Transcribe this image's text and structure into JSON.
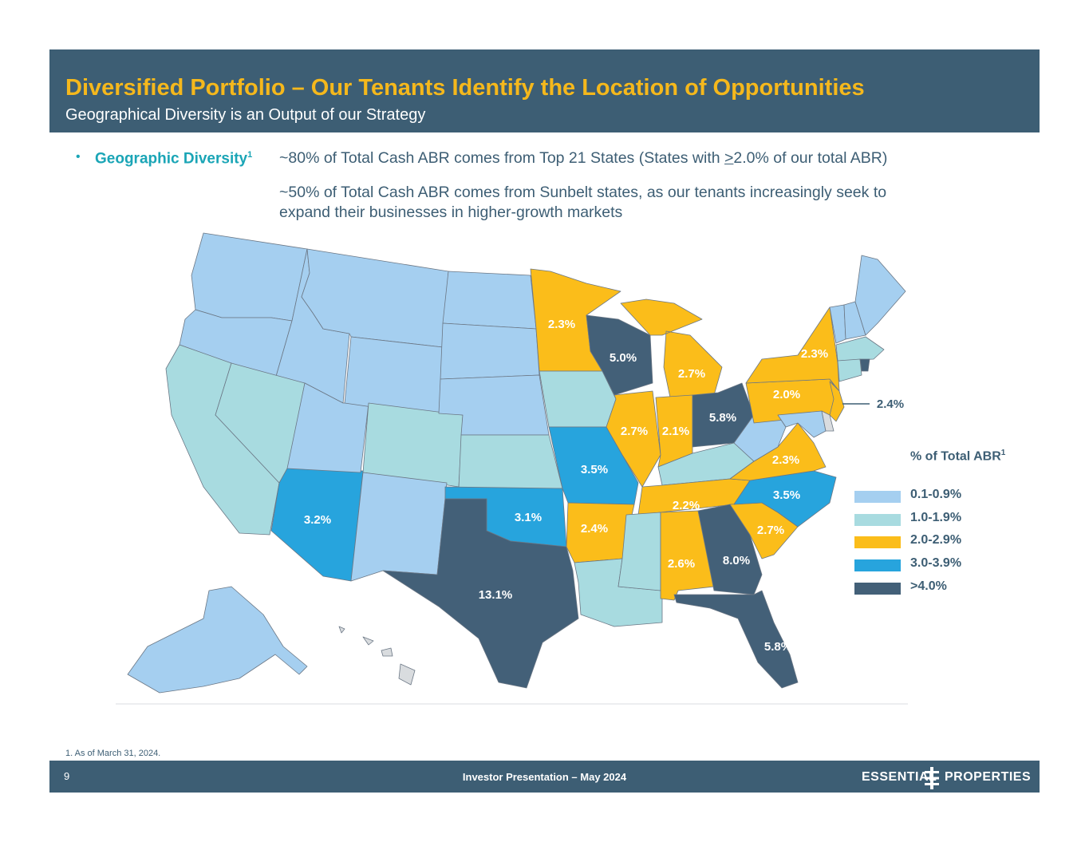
{
  "header": {
    "title": "Diversified Portfolio – Our Tenants Identify the Location of Opportunities",
    "subtitle": "Geographical Diversity is an Output of our Strategy"
  },
  "bullet": {
    "label": "Geographic Diversity",
    "label_sup": "1",
    "line1_prefix": "~80% of Total Cash ABR comes from Top 21 States (States with ",
    "line1_u": ">",
    "line1_suffix": "2.0% of our total ABR)",
    "line2a": "~50% of Total Cash ABR comes from Sunbelt states, as our tenants increasingly seek to",
    "line2b": "expand their businesses in higher-growth markets"
  },
  "map": {
    "labels": {
      "TX": "13.1%",
      "GA": "8.0%",
      "OH": "5.8%",
      "FL": "5.8%",
      "WI": "5.0%",
      "MO": "3.5%",
      "NC": "3.5%",
      "AZ": "3.2%",
      "OK": "3.1%",
      "IL": "2.7%",
      "MI": "2.7%",
      "SC": "2.7%",
      "AL": "2.6%",
      "NJ": "2.4%",
      "AR": "2.4%",
      "MN": "2.3%",
      "NY": "2.3%",
      "VA": "2.3%",
      "TN": "2.2%",
      "IN": "2.1%",
      "PA": "2.0%"
    },
    "colors": {
      "c1": "#a5cff0",
      "c2": "#a8dbe0",
      "c3": "#fbbd1a",
      "c4": "#27a4dd",
      "c5": "#436078",
      "na": "#d9dcdf"
    }
  },
  "legend": {
    "title": "% of Total ABR",
    "title_sup": "1",
    "items": [
      {
        "label": "0.1-0.9%",
        "color": "#a5cff0"
      },
      {
        "label": "1.0-1.9%",
        "color": "#a8dbe0"
      },
      {
        "label": "2.0-2.9%",
        "color": "#fbbd1a"
      },
      {
        "label": "3.0-3.9%",
        "color": "#27a4dd"
      },
      {
        "label": ">4.0%",
        "color": "#436078"
      }
    ]
  },
  "footnote": "1. As of March 31, 2024.",
  "footer": {
    "page": "9",
    "center": "Investor Presentation – May 2024",
    "logo_left": "ESSENTIAL",
    "logo_right": "PROPERTIES"
  }
}
